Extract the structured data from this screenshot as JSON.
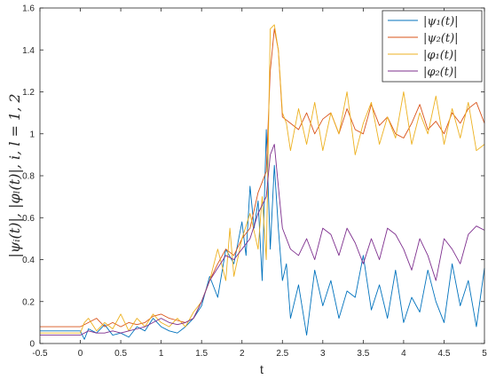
{
  "chart_data": {
    "type": "line",
    "title": "",
    "xlabel": "t",
    "ylabel": "|ψ_i(t)|, |φ_l(t)|, i, l = 1, 2",
    "ylabel_display": "|ψᵢ(t)|, |φₗ(t)|, i, l = 1, 2",
    "xlim": [
      -0.5,
      5
    ],
    "ylim": [
      0,
      1.6
    ],
    "xticks": [
      -0.5,
      0,
      0.5,
      1,
      1.5,
      2,
      2.5,
      3,
      3.5,
      4,
      4.5,
      5
    ],
    "xtick_labels": [
      "-0.5",
      "0",
      "0.5",
      "1",
      "1.5",
      "2",
      "2.5",
      "3",
      "3.5",
      "4",
      "4.5",
      "5"
    ],
    "yticks": [
      0,
      0.2,
      0.4,
      0.6,
      0.8,
      1,
      1.2,
      1.4,
      1.6
    ],
    "ytick_labels": [
      "0",
      "0.2",
      "0.4",
      "0.6",
      "0.8",
      "1",
      "1.2",
      "1.4",
      "1.6"
    ],
    "grid": false,
    "legend_position": "top-right",
    "series": [
      {
        "name": "|ψ₁(t)|",
        "color": "#0072BD",
        "x": [
          -0.5,
          0,
          0.05,
          0.1,
          0.2,
          0.3,
          0.4,
          0.5,
          0.6,
          0.7,
          0.8,
          0.9,
          1,
          1.1,
          1.2,
          1.3,
          1.4,
          1.5,
          1.6,
          1.7,
          1.8,
          1.9,
          2,
          2.05,
          2.1,
          2.15,
          2.2,
          2.25,
          2.3,
          2.35,
          2.4,
          2.45,
          2.5,
          2.55,
          2.6,
          2.7,
          2.8,
          2.9,
          3,
          3.1,
          3.2,
          3.3,
          3.4,
          3.5,
          3.6,
          3.7,
          3.8,
          3.9,
          4,
          4.1,
          4.2,
          4.3,
          4.4,
          4.5,
          4.6,
          4.7,
          4.8,
          4.9,
          5
        ],
        "y": [
          0.06,
          0.06,
          0.02,
          0.07,
          0.05,
          0.09,
          0.04,
          0.05,
          0.03,
          0.08,
          0.06,
          0.12,
          0.08,
          0.06,
          0.05,
          0.08,
          0.12,
          0.18,
          0.32,
          0.22,
          0.45,
          0.38,
          0.58,
          0.42,
          0.75,
          0.55,
          0.68,
          0.3,
          1.02,
          0.45,
          0.85,
          0.55,
          0.3,
          0.38,
          0.12,
          0.28,
          0.04,
          0.35,
          0.18,
          0.3,
          0.12,
          0.25,
          0.22,
          0.42,
          0.16,
          0.28,
          0.12,
          0.35,
          0.1,
          0.22,
          0.15,
          0.35,
          0.2,
          0.1,
          0.38,
          0.18,
          0.3,
          0.08,
          0.36
        ]
      },
      {
        "name": "|ψ₂(t)|",
        "color": "#D95319",
        "x": [
          -0.5,
          0,
          0.1,
          0.2,
          0.3,
          0.4,
          0.5,
          0.6,
          0.7,
          0.8,
          0.9,
          1,
          1.1,
          1.2,
          1.3,
          1.4,
          1.5,
          1.6,
          1.7,
          1.8,
          1.9,
          2,
          2.1,
          2.2,
          2.3,
          2.35,
          2.4,
          2.45,
          2.5,
          2.6,
          2.7,
          2.8,
          2.9,
          3,
          3.1,
          3.2,
          3.3,
          3.4,
          3.5,
          3.6,
          3.7,
          3.8,
          3.9,
          4,
          4.1,
          4.2,
          4.3,
          4.4,
          4.5,
          4.6,
          4.7,
          4.8,
          4.9,
          5
        ],
        "y": [
          0.08,
          0.08,
          0.1,
          0.12,
          0.08,
          0.1,
          0.08,
          0.1,
          0.09,
          0.1,
          0.13,
          0.14,
          0.12,
          0.11,
          0.1,
          0.12,
          0.2,
          0.3,
          0.38,
          0.45,
          0.42,
          0.5,
          0.55,
          0.72,
          0.82,
          1.3,
          1.5,
          1.4,
          1.08,
          1.05,
          1.02,
          1.1,
          1.0,
          1.07,
          1.1,
          1.0,
          1.12,
          1.02,
          1.0,
          1.14,
          1.04,
          1.08,
          1.0,
          0.98,
          1.05,
          1.14,
          1.02,
          1.06,
          1.0,
          1.1,
          1.05,
          1.12,
          1.15,
          1.05
        ]
      },
      {
        "name": "|φ₁(t)|",
        "color": "#EDB120",
        "x": [
          -0.5,
          0,
          0.05,
          0.1,
          0.2,
          0.3,
          0.4,
          0.5,
          0.6,
          0.7,
          0.8,
          0.9,
          1,
          1.1,
          1.2,
          1.3,
          1.4,
          1.5,
          1.6,
          1.7,
          1.8,
          1.85,
          1.9,
          2,
          2.1,
          2.2,
          2.25,
          2.3,
          2.35,
          2.4,
          2.45,
          2.5,
          2.55,
          2.6,
          2.7,
          2.8,
          2.9,
          3,
          3.1,
          3.2,
          3.3,
          3.4,
          3.5,
          3.6,
          3.7,
          3.8,
          3.9,
          4,
          4.1,
          4.2,
          4.3,
          4.4,
          4.5,
          4.6,
          4.7,
          4.8,
          4.9,
          5
        ],
        "y": [
          0.05,
          0.05,
          0.1,
          0.12,
          0.06,
          0.1,
          0.07,
          0.14,
          0.06,
          0.12,
          0.08,
          0.14,
          0.1,
          0.08,
          0.12,
          0.08,
          0.15,
          0.2,
          0.3,
          0.45,
          0.3,
          0.55,
          0.32,
          0.5,
          0.62,
          0.45,
          0.7,
          0.4,
          1.5,
          1.52,
          1.4,
          1.1,
          1.05,
          0.92,
          1.12,
          0.95,
          1.15,
          0.92,
          1.1,
          1.0,
          1.2,
          0.9,
          1.05,
          1.15,
          0.95,
          1.08,
          0.98,
          1.2,
          0.95,
          1.1,
          1.0,
          1.18,
          0.95,
          1.12,
          0.98,
          1.15,
          0.92,
          0.95
        ]
      },
      {
        "name": "|φ₂(t)|",
        "color": "#7E2F8E",
        "x": [
          -0.5,
          0,
          0.1,
          0.2,
          0.3,
          0.4,
          0.5,
          0.6,
          0.7,
          0.8,
          0.9,
          1,
          1.1,
          1.2,
          1.3,
          1.4,
          1.5,
          1.6,
          1.7,
          1.8,
          1.9,
          2,
          2.1,
          2.2,
          2.3,
          2.35,
          2.4,
          2.45,
          2.5,
          2.6,
          2.7,
          2.8,
          2.9,
          3,
          3.1,
          3.2,
          3.3,
          3.4,
          3.5,
          3.6,
          3.7,
          3.8,
          3.9,
          4,
          4.1,
          4.2,
          4.3,
          4.4,
          4.5,
          4.6,
          4.7,
          4.8,
          4.9,
          5
        ],
        "y": [
          0.04,
          0.04,
          0.06,
          0.05,
          0.05,
          0.06,
          0.05,
          0.06,
          0.07,
          0.08,
          0.1,
          0.12,
          0.1,
          0.09,
          0.1,
          0.12,
          0.2,
          0.3,
          0.36,
          0.42,
          0.4,
          0.45,
          0.5,
          0.62,
          0.7,
          0.9,
          0.95,
          0.75,
          0.55,
          0.45,
          0.42,
          0.5,
          0.4,
          0.55,
          0.52,
          0.42,
          0.55,
          0.48,
          0.38,
          0.5,
          0.4,
          0.55,
          0.52,
          0.45,
          0.35,
          0.5,
          0.42,
          0.3,
          0.5,
          0.45,
          0.38,
          0.52,
          0.56,
          0.54
        ]
      }
    ]
  }
}
